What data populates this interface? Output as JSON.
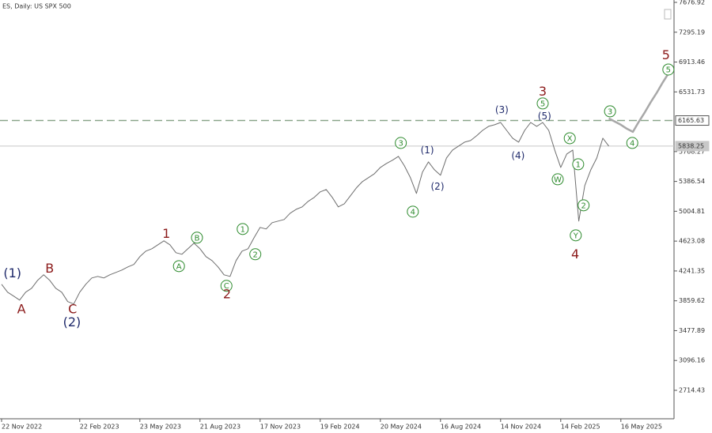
{
  "chart_data": {
    "type": "line",
    "title": "ES, Daily:  US SPX 500",
    "categories": [
      "22 Nov 2022",
      null,
      null,
      null,
      null,
      null,
      null,
      null,
      null,
      null,
      null,
      null,
      null,
      "22 Feb 2023",
      null,
      null,
      null,
      null,
      null,
      null,
      null,
      null,
      null,
      "23 May 2023",
      null,
      null,
      null,
      null,
      null,
      null,
      null,
      null,
      null,
      "21 Aug 2023",
      null,
      null,
      null,
      null,
      null,
      null,
      null,
      null,
      null,
      "17 Nov 2023",
      null,
      null,
      null,
      null,
      null,
      null,
      null,
      null,
      null,
      "19 Feb 2024",
      null,
      null,
      null,
      null,
      null,
      null,
      null,
      null,
      null,
      "20 May 2024",
      null,
      null,
      null,
      null,
      null,
      null,
      null,
      null,
      null,
      "16 Aug 2024",
      null,
      null,
      null,
      null,
      null,
      null,
      null,
      null,
      null,
      "14 Nov 2024",
      null,
      null,
      null,
      null,
      null,
      null,
      null,
      null,
      null,
      "14 Feb 2025",
      null,
      null,
      null,
      null,
      null,
      null,
      null,
      null,
      null,
      "16 May 2025",
      null,
      null,
      null,
      null,
      null,
      null,
      null,
      null
    ],
    "series": [
      {
        "name": "ES",
        "color": "#6e6e6e",
        "values": [
          4071,
          3970,
          3920,
          3869,
          3970,
          4020,
          4122,
          4192,
          4122,
          4020,
          3970,
          3849,
          3819,
          3970,
          4071,
          4152,
          4172,
          4152,
          4192,
          4222,
          4253,
          4293,
          4324,
          4424,
          4495,
          4526,
          4576,
          4627,
          4576,
          4475,
          4455,
          4526,
          4596,
          4526,
          4424,
          4374,
          4293,
          4192,
          4172,
          4374,
          4495,
          4526,
          4667,
          4798,
          4778,
          4859,
          4879,
          4899,
          4980,
          5030,
          5061,
          5132,
          5182,
          5253,
          5283,
          5182,
          5061,
          5101,
          5202,
          5303,
          5384,
          5434,
          5485,
          5566,
          5616,
          5657,
          5707,
          5586,
          5434,
          5233,
          5505,
          5636,
          5535,
          5465,
          5687,
          5788,
          5838,
          5889,
          5909,
          5970,
          6040,
          6091,
          6111,
          6141,
          6040,
          5939,
          5889,
          6040,
          6141,
          6091,
          6141,
          6040,
          5788,
          5566,
          5737,
          5788,
          4879,
          5334,
          5535,
          5687,
          5939,
          5838,
          null,
          null,
          null,
          null,
          null,
          null,
          null,
          null,
          null,
          null
        ]
      },
      {
        "name": "Projection",
        "color": "#a8a8a8",
        "values": [
          null,
          null,
          null,
          null,
          null,
          null,
          null,
          null,
          null,
          null,
          null,
          null,
          null,
          null,
          null,
          null,
          null,
          null,
          null,
          null,
          null,
          null,
          null,
          null,
          null,
          null,
          null,
          null,
          null,
          null,
          null,
          null,
          null,
          null,
          null,
          null,
          null,
          null,
          null,
          null,
          null,
          null,
          null,
          null,
          null,
          null,
          null,
          null,
          null,
          null,
          null,
          null,
          null,
          null,
          null,
          null,
          null,
          null,
          null,
          null,
          null,
          null,
          null,
          null,
          null,
          null,
          null,
          null,
          null,
          null,
          null,
          null,
          null,
          null,
          null,
          null,
          null,
          null,
          null,
          null,
          null,
          null,
          null,
          null,
          null,
          null,
          null,
          null,
          null,
          null,
          null,
          null,
          null,
          null,
          null,
          null,
          null,
          null,
          null,
          null,
          null,
          6192,
          6152,
          6111,
          6061,
          6020,
          6152,
          6273,
          6404,
          6525,
          6657,
          6778
        ]
      }
    ],
    "ylim": [
      2350.5,
      7707.2
    ],
    "yticks": [
      7676.92,
      7295.19,
      6913.46,
      6531.73,
      5768.27,
      5386.54,
      5004.81,
      4623.08,
      4241.35,
      3859.62,
      3477.89,
      3096.16,
      2714.43
    ],
    "price_lines": [
      {
        "value": 6165.63,
        "label": "6165.63",
        "color": "#8aa58a",
        "dashed": true
      },
      {
        "value": 5838.25,
        "label": "5838.25",
        "color": "#c8c8c8",
        "dashed": false
      }
    ],
    "annotations": [
      {
        "text": "(1)",
        "x": 1.8,
        "y": 4212,
        "color": "#1f2a6b",
        "circled": false,
        "large": true
      },
      {
        "text": "A",
        "x": 3.3,
        "y": 3748,
        "color": "#8b1a1a",
        "circled": false,
        "large": true
      },
      {
        "text": "B",
        "x": 8.0,
        "y": 4273,
        "color": "#8b1a1a",
        "circled": false,
        "large": true
      },
      {
        "text": "C",
        "x": 11.8,
        "y": 3748,
        "color": "#8b1a1a",
        "circled": false,
        "large": true
      },
      {
        "text": "(2)",
        "x": 11.7,
        "y": 3586,
        "color": "#1f2a6b",
        "circled": false,
        "large": true
      },
      {
        "text": "1",
        "x": 27.4,
        "y": 4717,
        "color": "#8b1a1a",
        "circled": false,
        "large": true
      },
      {
        "text": "A",
        "x": 29.5,
        "y": 4303,
        "color": "#2e8b2e",
        "circled": true,
        "large": false
      },
      {
        "text": "B",
        "x": 32.5,
        "y": 4667,
        "color": "#2e8b2e",
        "circled": true,
        "large": false
      },
      {
        "text": "C",
        "x": 37.4,
        "y": 4051,
        "color": "#2e8b2e",
        "circled": true,
        "large": false
      },
      {
        "text": "2",
        "x": 37.5,
        "y": 3940,
        "color": "#8b1a1a",
        "circled": false,
        "large": true
      },
      {
        "text": "1",
        "x": 40.1,
        "y": 4778,
        "color": "#2e8b2e",
        "circled": true,
        "large": false
      },
      {
        "text": "2",
        "x": 42.2,
        "y": 4455,
        "color": "#2e8b2e",
        "circled": true,
        "large": false
      },
      {
        "text": "3",
        "x": 66.4,
        "y": 5879,
        "color": "#2e8b2e",
        "circled": true,
        "large": false
      },
      {
        "text": "4",
        "x": 68.4,
        "y": 5000,
        "color": "#2e8b2e",
        "circled": true,
        "large": false
      },
      {
        "text": "(1)",
        "x": 70.8,
        "y": 5788,
        "color": "#1f2a6b",
        "circled": false,
        "large": false
      },
      {
        "text": "(2)",
        "x": 72.5,
        "y": 5324,
        "color": "#1f2a6b",
        "circled": false,
        "large": false
      },
      {
        "text": "(3)",
        "x": 83.2,
        "y": 6303,
        "color": "#1f2a6b",
        "circled": false,
        "large": false
      },
      {
        "text": "(4)",
        "x": 85.9,
        "y": 5717,
        "color": "#1f2a6b",
        "circled": false,
        "large": false
      },
      {
        "text": "3",
        "x": 90.0,
        "y": 6535,
        "color": "#8b1a1a",
        "circled": false,
        "large": true
      },
      {
        "text": "5",
        "x": 90.0,
        "y": 6384,
        "color": "#2e8b2e",
        "circled": true,
        "large": false
      },
      {
        "text": "(5)",
        "x": 90.3,
        "y": 6222,
        "color": "#1f2a6b",
        "circled": false,
        "large": false
      },
      {
        "text": "X",
        "x": 94.5,
        "y": 5939,
        "color": "#2e8b2e",
        "circled": true,
        "large": false
      },
      {
        "text": "W",
        "x": 92.5,
        "y": 5414,
        "color": "#2e8b2e",
        "circled": true,
        "large": false
      },
      {
        "text": "1",
        "x": 95.9,
        "y": 5606,
        "color": "#2e8b2e",
        "circled": true,
        "large": false
      },
      {
        "text": "2",
        "x": 96.8,
        "y": 5081,
        "color": "#2e8b2e",
        "circled": true,
        "large": false
      },
      {
        "text": "Y",
        "x": 95.5,
        "y": 4697,
        "color": "#2e8b2e",
        "circled": true,
        "large": false
      },
      {
        "text": "4",
        "x": 95.4,
        "y": 4455,
        "color": "#8b1a1a",
        "circled": false,
        "large": true
      },
      {
        "text": "3",
        "x": 101.2,
        "y": 6283,
        "color": "#2e8b2e",
        "circled": true,
        "large": false
      },
      {
        "text": "4",
        "x": 104.9,
        "y": 5879,
        "color": "#2e8b2e",
        "circled": true,
        "large": false
      },
      {
        "text": "5",
        "x": 110.5,
        "y": 7000,
        "color": "#8b1a1a",
        "circled": false,
        "large": true
      },
      {
        "text": "5",
        "x": 110.9,
        "y": 6818,
        "color": "#2e8b2e",
        "circled": true,
        "large": false
      }
    ]
  }
}
